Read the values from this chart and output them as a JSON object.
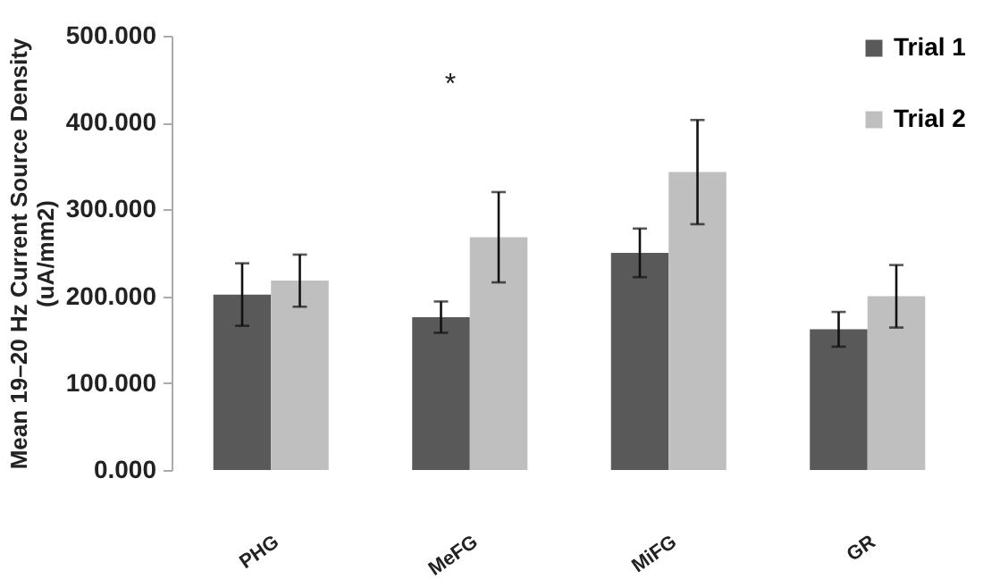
{
  "chart_data": {
    "type": "bar",
    "ylabel": "Mean 19–20 Hz Current Source Density\n(uA/mm2)",
    "categories": [
      "PHG",
      "MeFG",
      "MiFG",
      "GR"
    ],
    "series": [
      {
        "name": "Trial 1",
        "color": "#595959",
        "values": [
          202,
          176,
          250,
          162
        ],
        "errors": [
          36,
          18,
          28,
          20
        ]
      },
      {
        "name": "Trial 2",
        "color": "#bfbfbf",
        "values": [
          218,
          268,
          343,
          200
        ],
        "errors": [
          30,
          52,
          60,
          36
        ]
      }
    ],
    "ylim": [
      0,
      500
    ],
    "yticks": [
      {
        "value": 0,
        "label": "0.000"
      },
      {
        "value": 100,
        "label": "100.000"
      },
      {
        "value": 200,
        "label": "200.000"
      },
      {
        "value": 300,
        "label": "300.000"
      },
      {
        "value": 400,
        "label": "400.000"
      },
      {
        "value": 500,
        "label": "500.000"
      }
    ],
    "annotations": [
      "*"
    ],
    "legend": "top right",
    "grid": false
  }
}
